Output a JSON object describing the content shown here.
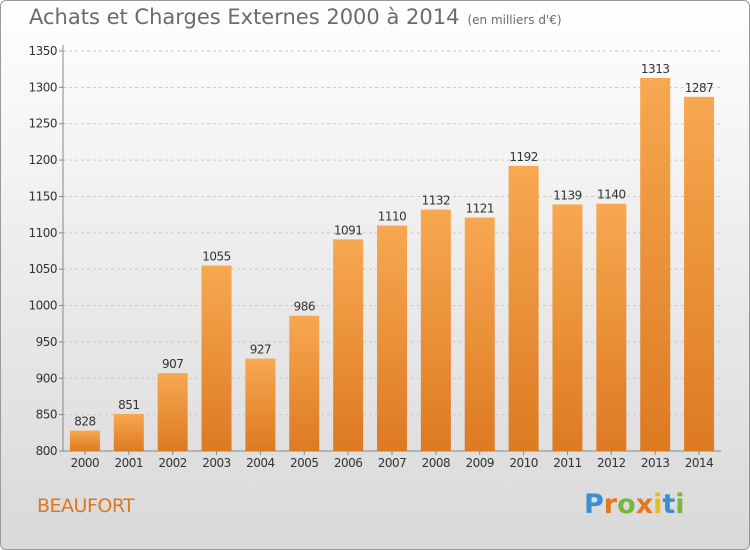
{
  "title": "Achats et Charges Externes 2000 à 2014",
  "unit_note": "(en milliers d'€)",
  "place": "BEAUFORT",
  "logo_text": "Proxiti",
  "colors": {
    "bar_light": "#f7a851",
    "bar_dark": "#dd7a22",
    "grid": "#c9c9c9",
    "axis_text": "#333333",
    "place": "#e0771f",
    "logo": [
      "#3a8fd1",
      "#e8761f",
      "#7ab63e",
      "#e8761f",
      "#e3c01f",
      "#3a8fd1",
      "#7ab63e"
    ]
  },
  "chart_data": {
    "type": "bar",
    "categories": [
      "2000",
      "2001",
      "2002",
      "2003",
      "2004",
      "2005",
      "2006",
      "2007",
      "2008",
      "2009",
      "2010",
      "2011",
      "2012",
      "2013",
      "2014"
    ],
    "values": [
      828,
      851,
      907,
      1055,
      927,
      986,
      1091,
      1110,
      1132,
      1121,
      1192,
      1139,
      1140,
      1313,
      1287
    ],
    "yticks": [
      800,
      850,
      900,
      950,
      1000,
      1050,
      1100,
      1150,
      1200,
      1250,
      1300,
      1350
    ],
    "ylim": [
      800,
      1350
    ],
    "grid": true,
    "xlabel": "",
    "ylabel": ""
  }
}
